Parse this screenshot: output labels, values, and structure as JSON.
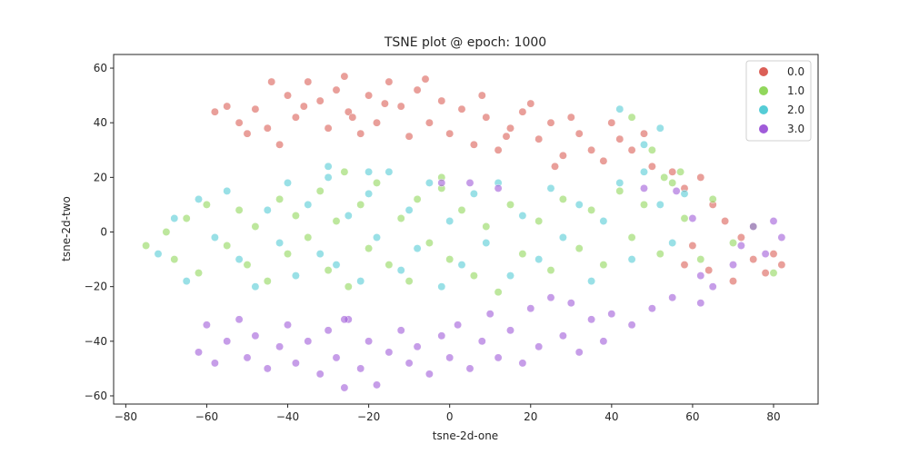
{
  "chart_data": {
    "type": "scatter",
    "title": "TSNE plot @ epoch: 1000",
    "xlabel": "tsne-2d-one",
    "ylabel": "tsne-2d-two",
    "xlim": [
      -83,
      91
    ],
    "ylim": [
      -63,
      65
    ],
    "x_ticks": [
      -80,
      -60,
      -40,
      -20,
      0,
      20,
      40,
      60,
      80
    ],
    "y_ticks": [
      -60,
      -40,
      -20,
      0,
      20,
      40,
      60
    ],
    "grid": false,
    "legend_position": "top-right",
    "series": [
      {
        "name": "0.0",
        "color": "#db5f57",
        "points": [
          [
            -58,
            44
          ],
          [
            -55,
            46
          ],
          [
            -52,
            40
          ],
          [
            -48,
            45
          ],
          [
            -45,
            38
          ],
          [
            -40,
            50
          ],
          [
            -38,
            42
          ],
          [
            -35,
            55
          ],
          [
            -32,
            48
          ],
          [
            -30,
            38
          ],
          [
            -28,
            52
          ],
          [
            -25,
            44
          ],
          [
            -22,
            36
          ],
          [
            -20,
            50
          ],
          [
            -18,
            40
          ],
          [
            -15,
            55
          ],
          [
            -12,
            46
          ],
          [
            -10,
            35
          ],
          [
            -8,
            52
          ],
          [
            -5,
            40
          ],
          [
            -2,
            48
          ],
          [
            0,
            36
          ],
          [
            3,
            45
          ],
          [
            6,
            32
          ],
          [
            9,
            42
          ],
          [
            12,
            30
          ],
          [
            15,
            38
          ],
          [
            18,
            44
          ],
          [
            22,
            34
          ],
          [
            25,
            40
          ],
          [
            28,
            28
          ],
          [
            32,
            36
          ],
          [
            35,
            30
          ],
          [
            38,
            26
          ],
          [
            42,
            34
          ],
          [
            45,
            30
          ],
          [
            50,
            24
          ],
          [
            55,
            22
          ],
          [
            58,
            16
          ],
          [
            62,
            20
          ],
          [
            65,
            10
          ],
          [
            68,
            4
          ],
          [
            72,
            -2
          ],
          [
            75,
            -10
          ],
          [
            78,
            -15
          ],
          [
            80,
            -8
          ],
          [
            82,
            -12
          ],
          [
            60,
            -5
          ],
          [
            64,
            -14
          ],
          [
            58,
            -12
          ],
          [
            70,
            -18
          ],
          [
            -50,
            36
          ],
          [
            -42,
            32
          ],
          [
            -36,
            46
          ],
          [
            -26,
            57
          ],
          [
            -16,
            47
          ],
          [
            -6,
            56
          ],
          [
            8,
            50
          ],
          [
            20,
            47
          ],
          [
            30,
            42
          ],
          [
            40,
            40
          ],
          [
            48,
            36
          ],
          [
            -44,
            55
          ],
          [
            -24,
            42
          ],
          [
            14,
            35
          ],
          [
            26,
            24
          ]
        ]
      },
      {
        "name": "1.0",
        "color": "#91d75c",
        "points": [
          [
            -75,
            -5
          ],
          [
            -70,
            0
          ],
          [
            -68,
            -10
          ],
          [
            -65,
            5
          ],
          [
            -62,
            -15
          ],
          [
            -60,
            10
          ],
          [
            -55,
            -5
          ],
          [
            -52,
            8
          ],
          [
            -50,
            -12
          ],
          [
            -48,
            2
          ],
          [
            -45,
            -18
          ],
          [
            -42,
            12
          ],
          [
            -40,
            -8
          ],
          [
            -38,
            6
          ],
          [
            -35,
            -2
          ],
          [
            -32,
            15
          ],
          [
            -30,
            -14
          ],
          [
            -28,
            4
          ],
          [
            -25,
            -20
          ],
          [
            -22,
            10
          ],
          [
            -20,
            -6
          ],
          [
            -18,
            18
          ],
          [
            -15,
            -12
          ],
          [
            -12,
            5
          ],
          [
            -10,
            -18
          ],
          [
            -8,
            12
          ],
          [
            -5,
            -4
          ],
          [
            -2,
            16
          ],
          [
            0,
            -10
          ],
          [
            3,
            8
          ],
          [
            6,
            -16
          ],
          [
            9,
            2
          ],
          [
            12,
            -22
          ],
          [
            15,
            10
          ],
          [
            18,
            -8
          ],
          [
            22,
            4
          ],
          [
            25,
            -14
          ],
          [
            28,
            12
          ],
          [
            32,
            -6
          ],
          [
            35,
            8
          ],
          [
            38,
            -12
          ],
          [
            42,
            15
          ],
          [
            45,
            -2
          ],
          [
            48,
            10
          ],
          [
            52,
            -8
          ],
          [
            55,
            18
          ],
          [
            58,
            5
          ],
          [
            62,
            -10
          ],
          [
            65,
            12
          ],
          [
            70,
            -4
          ],
          [
            75,
            2
          ],
          [
            80,
            -15
          ],
          [
            45,
            42
          ],
          [
            50,
            30
          ],
          [
            53,
            20
          ],
          [
            57,
            22
          ],
          [
            -26,
            22
          ],
          [
            -2,
            20
          ]
        ]
      },
      {
        "name": "2.0",
        "color": "#55ccd6",
        "points": [
          [
            -72,
            -8
          ],
          [
            -68,
            5
          ],
          [
            -65,
            -18
          ],
          [
            -62,
            12
          ],
          [
            -58,
            -2
          ],
          [
            -55,
            15
          ],
          [
            -52,
            -10
          ],
          [
            -48,
            -20
          ],
          [
            -45,
            8
          ],
          [
            -42,
            -4
          ],
          [
            -40,
            18
          ],
          [
            -38,
            -16
          ],
          [
            -35,
            10
          ],
          [
            -32,
            -8
          ],
          [
            -30,
            20
          ],
          [
            -28,
            -12
          ],
          [
            -25,
            6
          ],
          [
            -22,
            -18
          ],
          [
            -20,
            14
          ],
          [
            -18,
            -2
          ],
          [
            -15,
            22
          ],
          [
            -12,
            -14
          ],
          [
            -10,
            8
          ],
          [
            -8,
            -6
          ],
          [
            -5,
            18
          ],
          [
            -2,
            -20
          ],
          [
            0,
            4
          ],
          [
            3,
            -12
          ],
          [
            6,
            14
          ],
          [
            9,
            -4
          ],
          [
            12,
            18
          ],
          [
            15,
            -16
          ],
          [
            18,
            6
          ],
          [
            22,
            -10
          ],
          [
            25,
            16
          ],
          [
            28,
            -2
          ],
          [
            32,
            10
          ],
          [
            35,
            -18
          ],
          [
            38,
            4
          ],
          [
            42,
            18
          ],
          [
            45,
            -10
          ],
          [
            48,
            22
          ],
          [
            52,
            10
          ],
          [
            55,
            -4
          ],
          [
            58,
            14
          ],
          [
            42,
            45
          ],
          [
            48,
            32
          ],
          [
            52,
            38
          ],
          [
            -30,
            24
          ],
          [
            -20,
            22
          ]
        ]
      },
      {
        "name": "3.0",
        "color": "#a05bd9",
        "points": [
          [
            -62,
            -44
          ],
          [
            -60,
            -34
          ],
          [
            -58,
            -48
          ],
          [
            -55,
            -40
          ],
          [
            -52,
            -32
          ],
          [
            -50,
            -46
          ],
          [
            -48,
            -38
          ],
          [
            -45,
            -50
          ],
          [
            -42,
            -42
          ],
          [
            -40,
            -34
          ],
          [
            -38,
            -48
          ],
          [
            -35,
            -40
          ],
          [
            -32,
            -52
          ],
          [
            -30,
            -36
          ],
          [
            -28,
            -46
          ],
          [
            -25,
            -32
          ],
          [
            -22,
            -50
          ],
          [
            -20,
            -40
          ],
          [
            -18,
            -56
          ],
          [
            -15,
            -44
          ],
          [
            -12,
            -36
          ],
          [
            -10,
            -48
          ],
          [
            -8,
            -42
          ],
          [
            -5,
            -52
          ],
          [
            -2,
            -38
          ],
          [
            0,
            -46
          ],
          [
            2,
            -34
          ],
          [
            5,
            -50
          ],
          [
            8,
            -40
          ],
          [
            10,
            -30
          ],
          [
            12,
            -46
          ],
          [
            15,
            -36
          ],
          [
            18,
            -48
          ],
          [
            20,
            -28
          ],
          [
            22,
            -42
          ],
          [
            25,
            -24
          ],
          [
            28,
            -38
          ],
          [
            30,
            -26
          ],
          [
            32,
            -44
          ],
          [
            35,
            -32
          ],
          [
            38,
            -40
          ],
          [
            40,
            -30
          ],
          [
            45,
            -34
          ],
          [
            50,
            -28
          ],
          [
            55,
            -24
          ],
          [
            62,
            -26
          ],
          [
            65,
            -20
          ],
          [
            70,
            -12
          ],
          [
            72,
            -5
          ],
          [
            75,
            2
          ],
          [
            78,
            -8
          ],
          [
            80,
            4
          ],
          [
            82,
            -2
          ],
          [
            60,
            5
          ],
          [
            56,
            15
          ],
          [
            48,
            16
          ],
          [
            5,
            18
          ],
          [
            12,
            16
          ],
          [
            62,
            -16
          ],
          [
            -26,
            -57
          ],
          [
            -26,
            -32
          ],
          [
            -2,
            18
          ]
        ]
      }
    ]
  }
}
